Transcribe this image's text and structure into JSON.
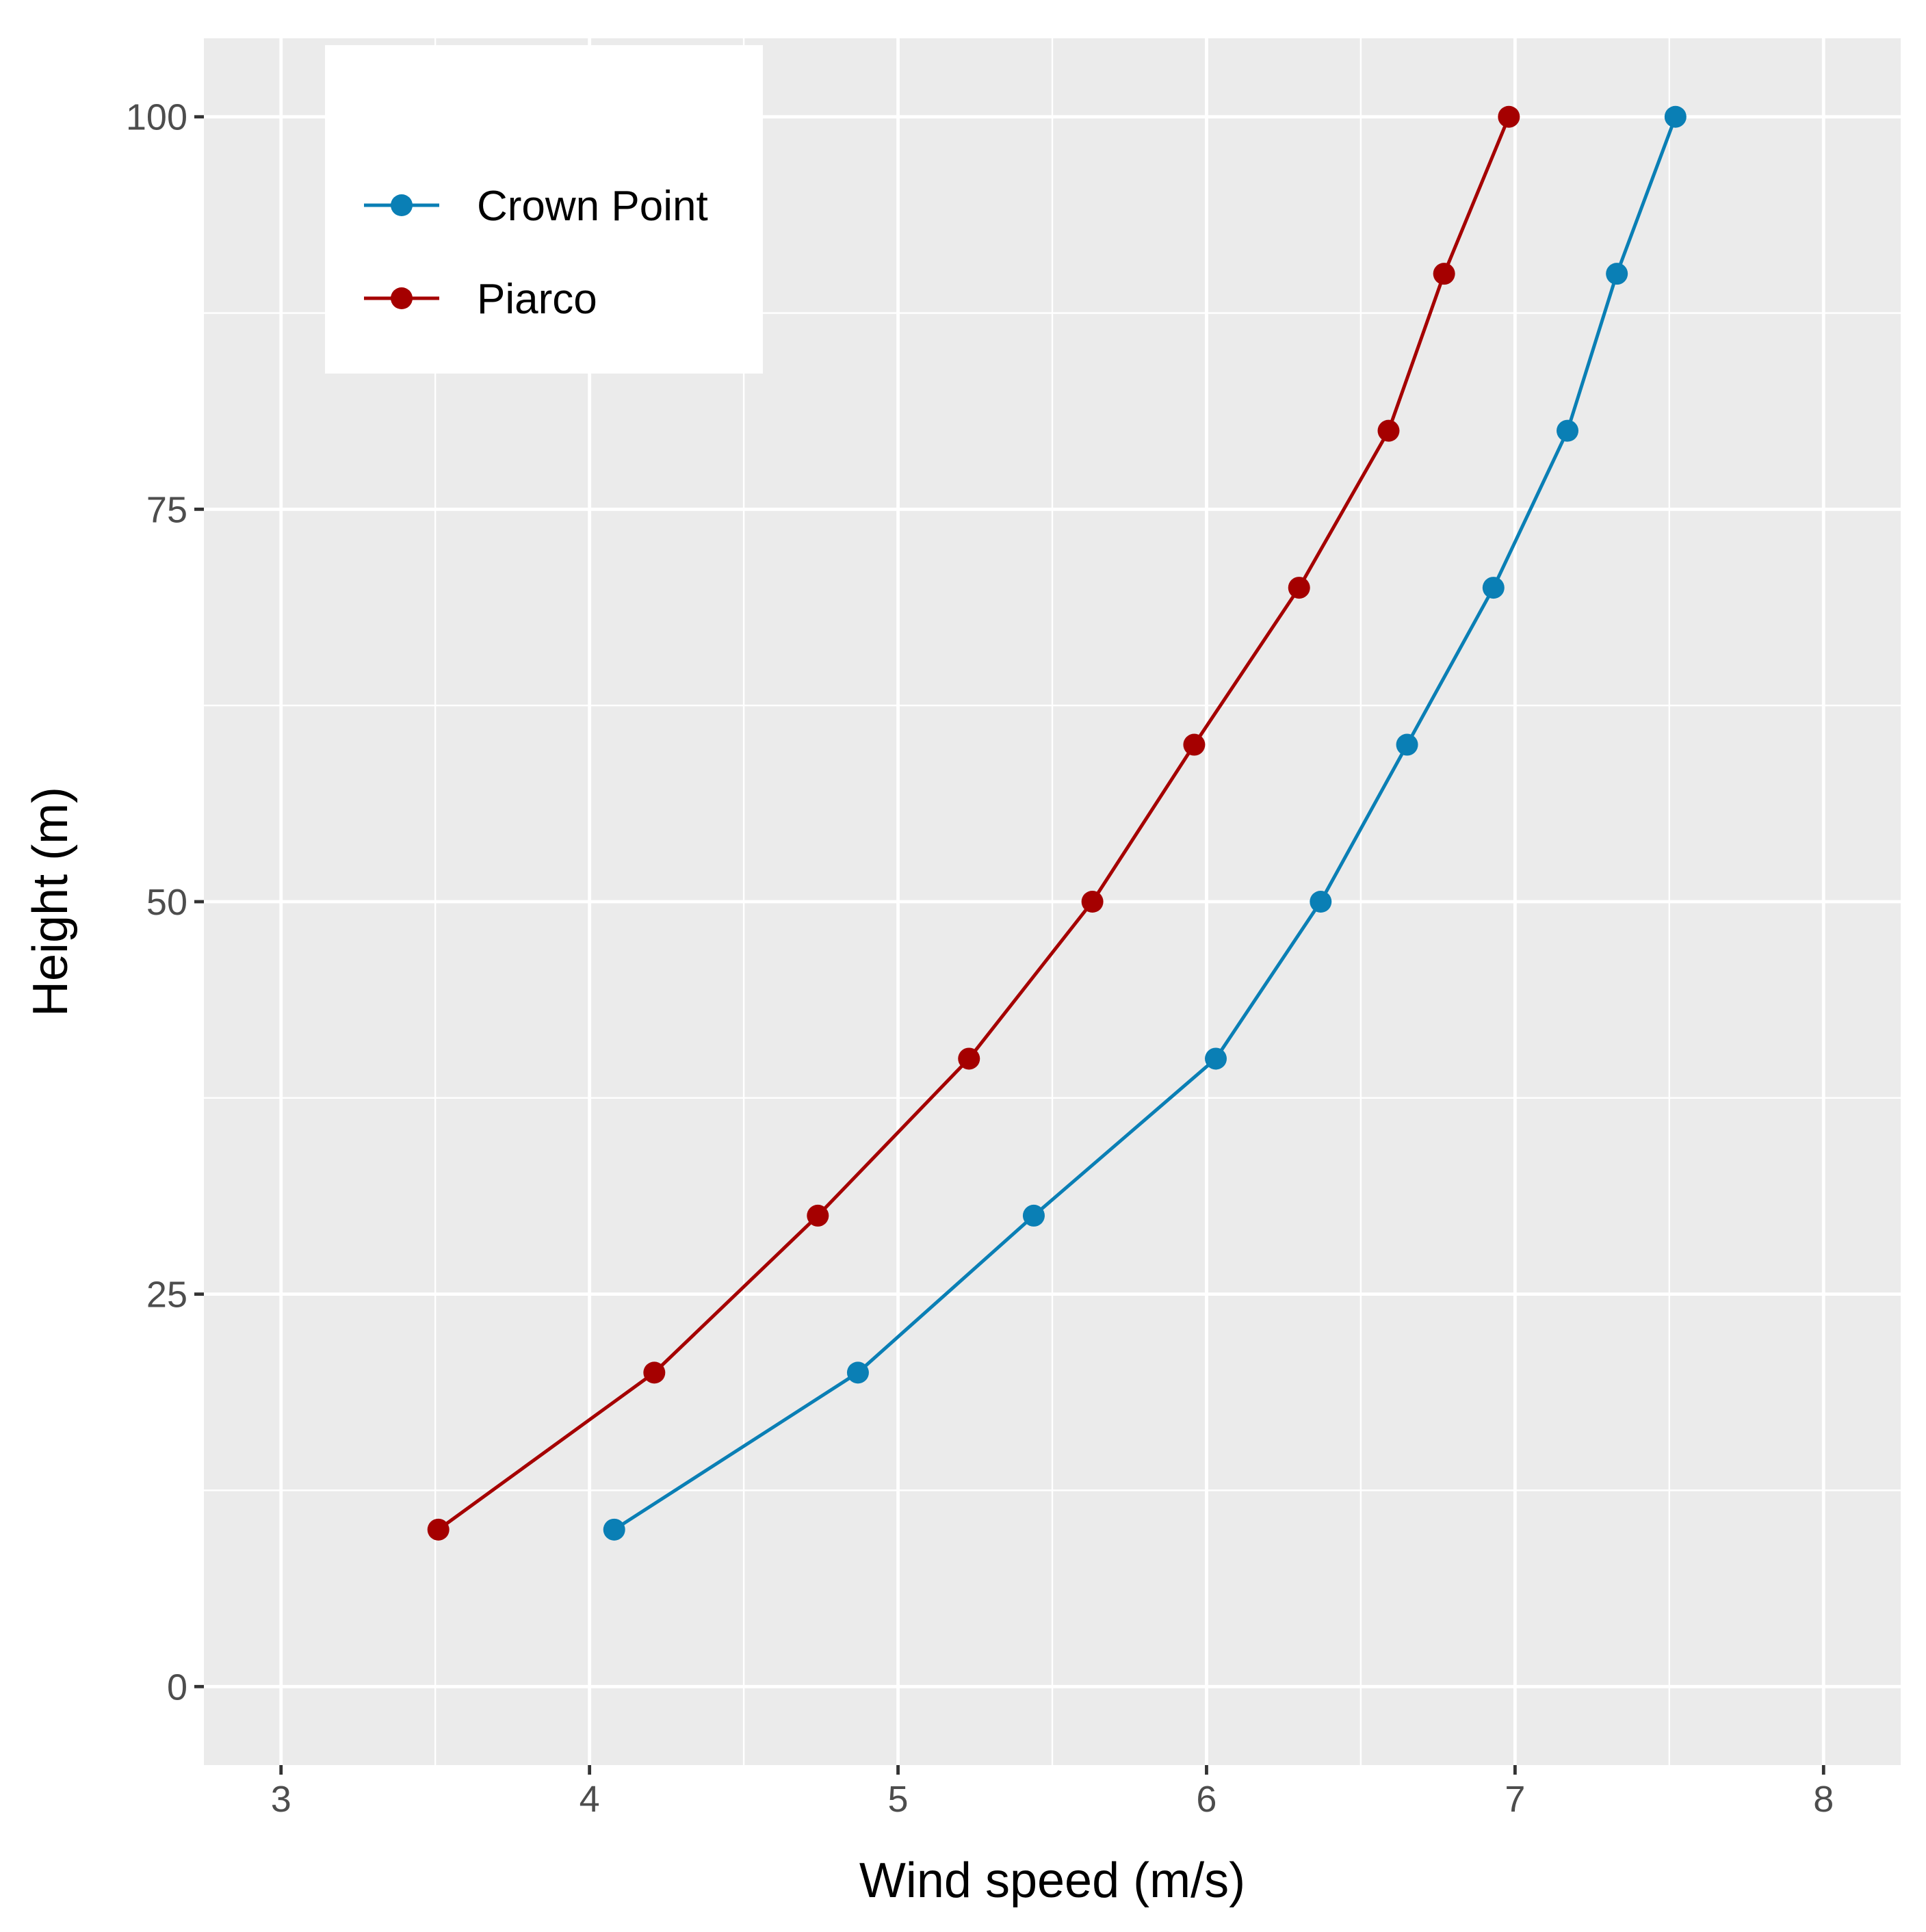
{
  "chart_data": {
    "type": "line",
    "xlabel": "Wind speed (m/s)",
    "ylabel": "Height (m)",
    "xlim": [
      2.75,
      8.25
    ],
    "ylim": [
      -5,
      105
    ],
    "x_ticks": [
      3,
      4,
      5,
      6,
      7,
      8
    ],
    "y_ticks": [
      0,
      25,
      50,
      75,
      100
    ],
    "grid": true,
    "legend_position": "top-left",
    "colors": {
      "panel": "#ebebeb",
      "grid": "#ffffff"
    },
    "series": [
      {
        "name": "Crown Point",
        "color": "#0a7fb5",
        "points": [
          {
            "x": 4.08,
            "y": 10
          },
          {
            "x": 4.87,
            "y": 20
          },
          {
            "x": 5.44,
            "y": 30
          },
          {
            "x": 6.03,
            "y": 40
          },
          {
            "x": 6.37,
            "y": 50
          },
          {
            "x": 6.65,
            "y": 60
          },
          {
            "x": 6.93,
            "y": 70
          },
          {
            "x": 7.17,
            "y": 80
          },
          {
            "x": 7.33,
            "y": 90
          },
          {
            "x": 7.52,
            "y": 100
          }
        ]
      },
      {
        "name": "Piarco",
        "color": "#a50000",
        "points": [
          {
            "x": 3.51,
            "y": 10
          },
          {
            "x": 4.21,
            "y": 20
          },
          {
            "x": 4.74,
            "y": 30
          },
          {
            "x": 5.23,
            "y": 40
          },
          {
            "x": 5.63,
            "y": 50
          },
          {
            "x": 5.96,
            "y": 60
          },
          {
            "x": 6.3,
            "y": 70
          },
          {
            "x": 6.59,
            "y": 80
          },
          {
            "x": 6.77,
            "y": 90
          },
          {
            "x": 6.98,
            "y": 100
          }
        ]
      }
    ]
  }
}
